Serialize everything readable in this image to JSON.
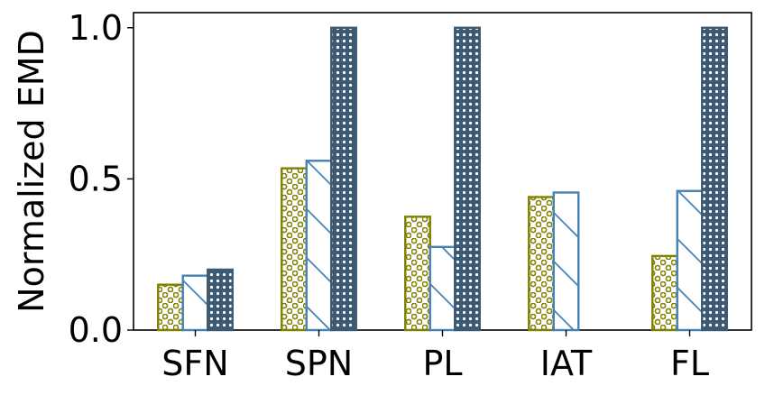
{
  "chart_data": {
    "type": "bar",
    "title": "",
    "xlabel": "",
    "ylabel": "Normalized EMD",
    "categories": [
      "SFN",
      "SPN",
      "PL",
      "IAT",
      "FL"
    ],
    "series": [
      {
        "values": [
          0.15,
          0.535,
          0.375,
          0.44,
          0.245
        ],
        "color": "#808000",
        "hatch": "circles"
      },
      {
        "values": [
          0.18,
          0.56,
          0.275,
          0.455,
          0.46
        ],
        "color": "#4682b4",
        "hatch": "diagonal"
      },
      {
        "values": [
          0.2,
          1.0,
          1.0,
          null,
          1.0
        ],
        "color": "#3d5a73",
        "hatch": "stars"
      }
    ],
    "ylim": [
      0,
      1.05
    ],
    "yticks": [
      0.0,
      0.5,
      1.0
    ],
    "ytick_labels": [
      "0.0",
      "0.5",
      "1.0"
    ],
    "grid": false,
    "legend": "none"
  }
}
